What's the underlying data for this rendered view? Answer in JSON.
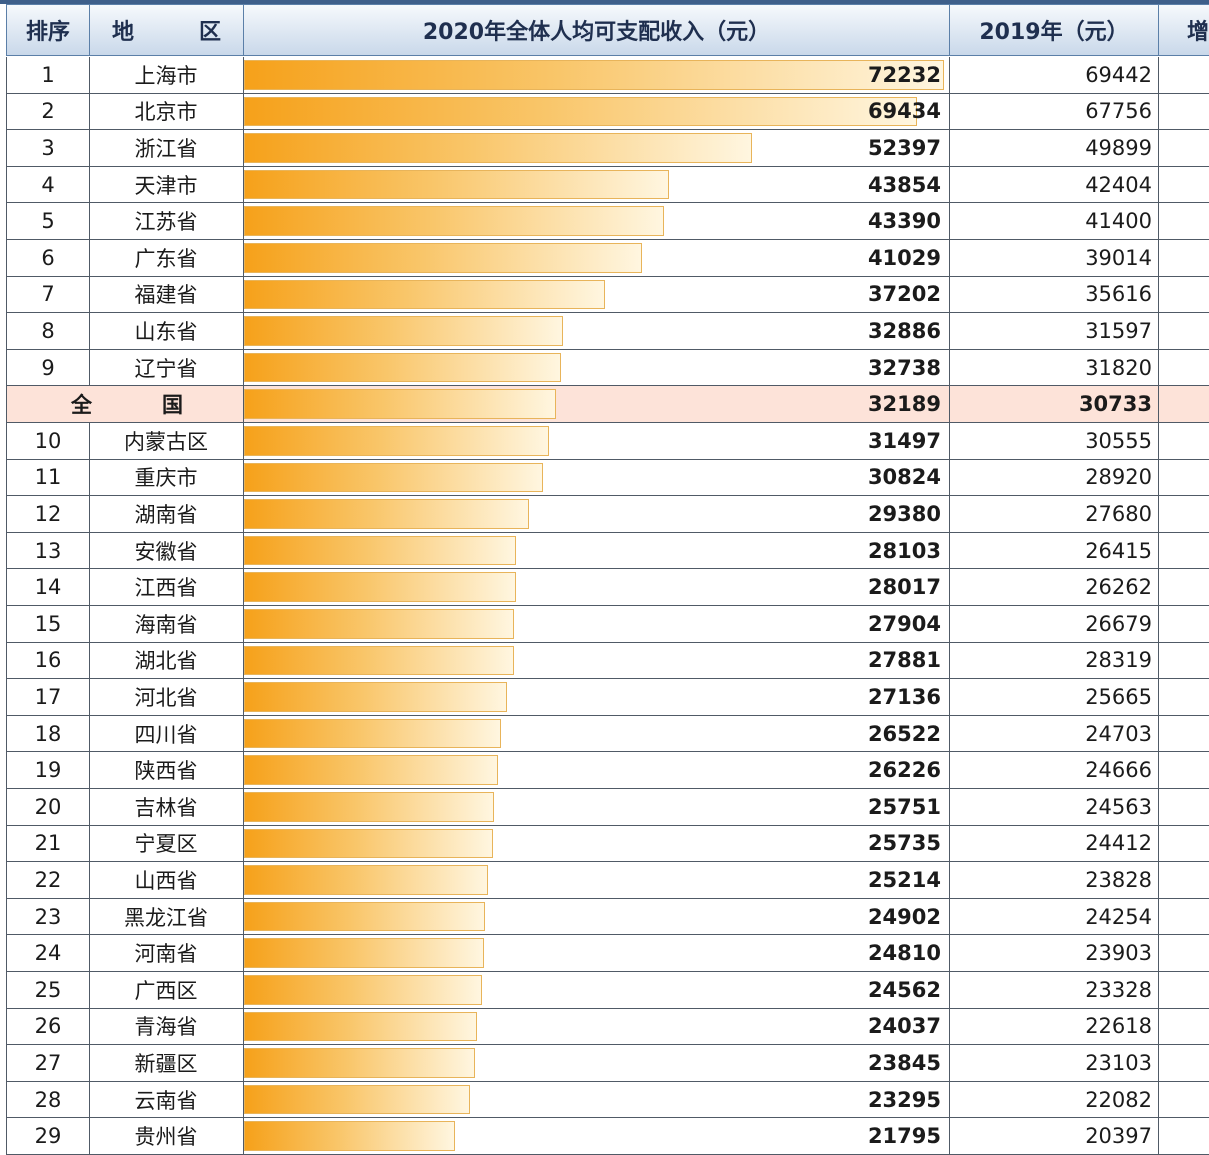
{
  "headers": {
    "rank": "排序",
    "region_a": "地",
    "region_b": "区",
    "income_2020": "2020年全体人均可支配收入（元）",
    "income_2019": "2019年（元）",
    "growth": "增"
  },
  "chart_data": {
    "type": "bar",
    "orientation": "horizontal",
    "bar_max": 72232,
    "rows": [
      {
        "rank": "1",
        "region": "上海市",
        "v2020": 72232,
        "v2019": 69442
      },
      {
        "rank": "2",
        "region": "北京市",
        "v2020": 69434,
        "v2019": 67756
      },
      {
        "rank": "3",
        "region": "浙江省",
        "v2020": 52397,
        "v2019": 49899
      },
      {
        "rank": "4",
        "region": "天津市",
        "v2020": 43854,
        "v2019": 42404
      },
      {
        "rank": "5",
        "region": "江苏省",
        "v2020": 43390,
        "v2019": 41400
      },
      {
        "rank": "6",
        "region": "广东省",
        "v2020": 41029,
        "v2019": 39014
      },
      {
        "rank": "7",
        "region": "福建省",
        "v2020": 37202,
        "v2019": 35616
      },
      {
        "rank": "8",
        "region": "山东省",
        "v2020": 32886,
        "v2019": 31597
      },
      {
        "rank": "9",
        "region": "辽宁省",
        "v2020": 32738,
        "v2019": 31820
      },
      {
        "rank": "",
        "region": "",
        "national_a": "全",
        "national_b": "国",
        "v2020": 32189,
        "v2019": 30733,
        "national": true
      },
      {
        "rank": "10",
        "region": "内蒙古区",
        "v2020": 31497,
        "v2019": 30555
      },
      {
        "rank": "11",
        "region": "重庆市",
        "v2020": 30824,
        "v2019": 28920
      },
      {
        "rank": "12",
        "region": "湖南省",
        "v2020": 29380,
        "v2019": 27680
      },
      {
        "rank": "13",
        "region": "安徽省",
        "v2020": 28103,
        "v2019": 26415
      },
      {
        "rank": "14",
        "region": "江西省",
        "v2020": 28017,
        "v2019": 26262
      },
      {
        "rank": "15",
        "region": "海南省",
        "v2020": 27904,
        "v2019": 26679
      },
      {
        "rank": "16",
        "region": "湖北省",
        "v2020": 27881,
        "v2019": 28319
      },
      {
        "rank": "17",
        "region": "河北省",
        "v2020": 27136,
        "v2019": 25665
      },
      {
        "rank": "18",
        "region": "四川省",
        "v2020": 26522,
        "v2019": 24703
      },
      {
        "rank": "19",
        "region": "陕西省",
        "v2020": 26226,
        "v2019": 24666
      },
      {
        "rank": "20",
        "region": "吉林省",
        "v2020": 25751,
        "v2019": 24563
      },
      {
        "rank": "21",
        "region": "宁夏区",
        "v2020": 25735,
        "v2019": 24412
      },
      {
        "rank": "22",
        "region": "山西省",
        "v2020": 25214,
        "v2019": 23828
      },
      {
        "rank": "23",
        "region": "黑龙江省",
        "v2020": 24902,
        "v2019": 24254
      },
      {
        "rank": "24",
        "region": "河南省",
        "v2020": 24810,
        "v2019": 23903
      },
      {
        "rank": "25",
        "region": "广西区",
        "v2020": 24562,
        "v2019": 23328
      },
      {
        "rank": "26",
        "region": "青海省",
        "v2020": 24037,
        "v2019": 22618
      },
      {
        "rank": "27",
        "region": "新疆区",
        "v2020": 23845,
        "v2019": 23103
      },
      {
        "rank": "28",
        "region": "云南省",
        "v2020": 23295,
        "v2019": 22082
      },
      {
        "rank": "29",
        "region": "贵州省",
        "v2020": 21795,
        "v2019": 20397
      }
    ]
  }
}
